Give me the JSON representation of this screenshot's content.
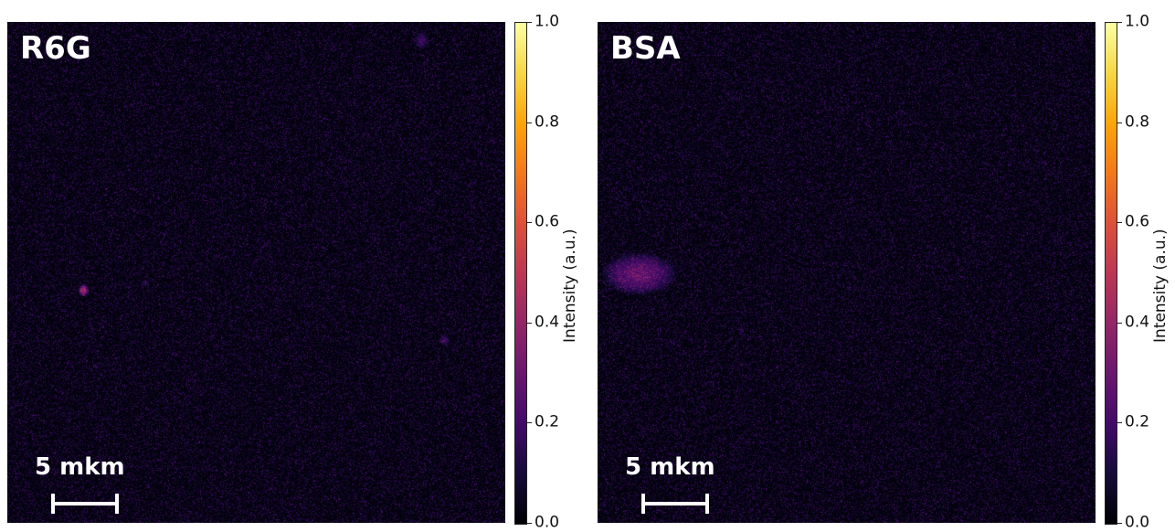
{
  "panels": [
    {
      "title": "R6G",
      "scalebar_label": "5 mkm",
      "bright_spots": "few small spots"
    },
    {
      "title": "BSA",
      "scalebar_label": "5 mkm",
      "bright_spots": "diffuse patch on left edge"
    }
  ],
  "colorbar": {
    "label": "Intensity (a.u.)",
    "ticks": [
      "0.0",
      "0.2",
      "0.4",
      "0.6",
      "0.8",
      "1.0"
    ],
    "colormap": "inferno"
  }
}
